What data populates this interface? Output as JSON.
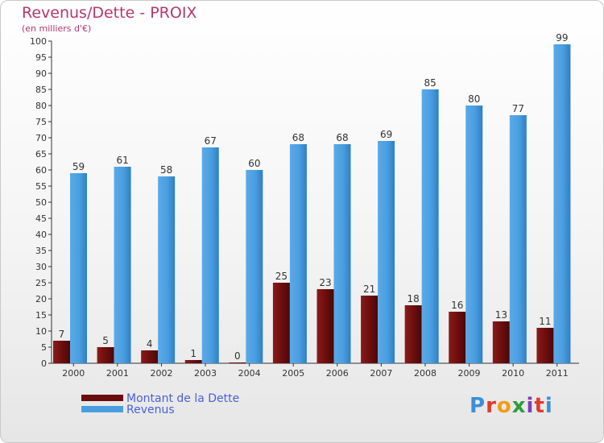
{
  "title": "Revenus/Dette - PROIX",
  "subtitle": "(en milliers d'€)",
  "logo": {
    "text": "Proxiti",
    "colors": [
      "#3b8fd6",
      "#e03a2c",
      "#f39c12",
      "#2e9d3a",
      "#7b3fb2",
      "#e03a2c",
      "#3b8fd6"
    ]
  },
  "chart_data": {
    "type": "bar",
    "categories": [
      "2000",
      "2001",
      "2002",
      "2003",
      "2004",
      "2005",
      "2006",
      "2007",
      "2008",
      "2009",
      "2010",
      "2011"
    ],
    "series": [
      {
        "name": "Montant de la Dette",
        "values": [
          7,
          5,
          4,
          1,
          0,
          25,
          23,
          21,
          18,
          16,
          13,
          11
        ],
        "color": "#6b0d0d"
      },
      {
        "name": "Revenus",
        "values": [
          59,
          61,
          58,
          67,
          60,
          68,
          68,
          69,
          85,
          80,
          77,
          99
        ],
        "color": "#4a9ee0"
      }
    ],
    "ylim": [
      0,
      100
    ],
    "yticks": [
      0,
      5,
      10,
      15,
      20,
      25,
      30,
      35,
      40,
      45,
      50,
      55,
      60,
      65,
      70,
      75,
      80,
      85,
      90,
      95,
      100
    ],
    "grid": false,
    "legend": "bottom-left",
    "data_labels": true
  }
}
